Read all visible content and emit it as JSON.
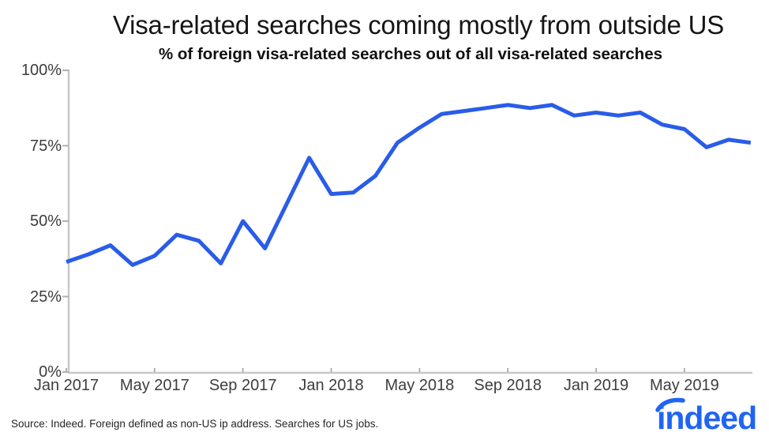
{
  "header": {
    "title": "Visa-related searches coming mostly from outside US",
    "subtitle": "% of foreign visa-related searches out of all visa-related searches"
  },
  "footer": {
    "source": "Source: Indeed. Foreign defined as non-US ip address. Searches for US jobs.",
    "logo_text": "indeed"
  },
  "colors": {
    "line": "#2a5ce8",
    "axis": "#c8c8c8",
    "tick_mark": "#b0b0b0",
    "axis_text": "#3d3d3d",
    "logo_blue": "#2164f3"
  },
  "chart_data": {
    "type": "line",
    "title": "Visa-related searches coming mostly from outside US",
    "subtitle": "% of foreign visa-related searches out of all visa-related searches",
    "x": [
      "Jan 2017",
      "Feb 2017",
      "Mar 2017",
      "Apr 2017",
      "May 2017",
      "Jun 2017",
      "Jul 2017",
      "Aug 2017",
      "Sep 2017",
      "Oct 2017",
      "Nov 2017",
      "Dec 2017",
      "Jan 2018",
      "Feb 2018",
      "Mar 2018",
      "Apr 2018",
      "May 2018",
      "Jun 2018",
      "Jul 2018",
      "Aug 2018",
      "Sep 2018",
      "Oct 2018",
      "Nov 2018",
      "Dec 2018",
      "Jan 2019",
      "Feb 2019",
      "Mar 2019",
      "Apr 2019",
      "May 2019",
      "Jun 2019",
      "Jul 2019",
      "Aug 2019"
    ],
    "values": [
      36.5,
      39,
      42,
      35.5,
      38.5,
      45.5,
      43.5,
      36,
      50,
      41,
      56,
      71,
      59,
      59.5,
      65,
      76,
      81,
      85.5,
      86.5,
      87.5,
      88.5,
      87.5,
      88.5,
      85,
      86,
      85,
      86,
      82,
      80.5,
      74.5,
      77,
      76
    ],
    "xticks": [
      "Jan 2017",
      "May 2017",
      "Sep 2017",
      "Jan 2018",
      "May 2018",
      "Sep 2018",
      "Jan 2019",
      "May 2019"
    ],
    "yticks": [
      {
        "value": 100,
        "label": "100%"
      },
      {
        "value": 75,
        "label": "75%"
      },
      {
        "value": 50,
        "label": "50%"
      },
      {
        "value": 25,
        "label": "25%"
      },
      {
        "value": 0,
        "label": "0%"
      }
    ],
    "ylim": [
      0,
      100
    ],
    "xlabel": "",
    "ylabel": "",
    "grid": false,
    "legend": null
  }
}
